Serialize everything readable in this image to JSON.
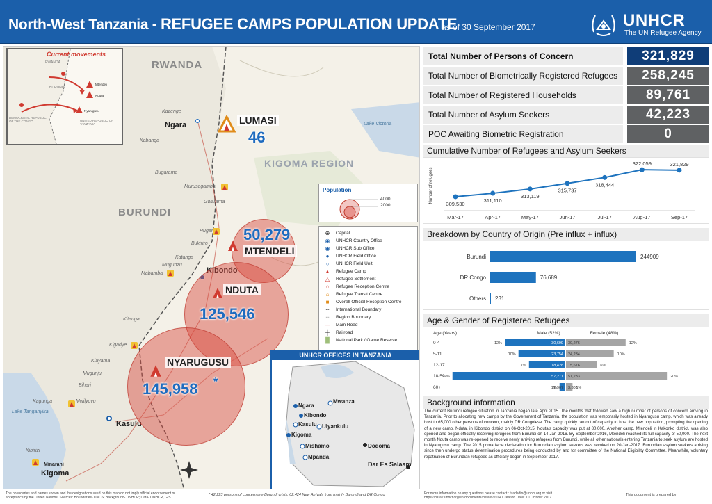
{
  "header": {
    "title_prefix": "North-West Tanzania - ",
    "title_caps": "REFUGEE  CAMPS POPULATION UPDATE",
    "as_of": "as of 30 September 2017",
    "org_name": "UNHCR",
    "org_tagline": "The UN Refugee Agency",
    "brand_color": "#1b5faa"
  },
  "stats": [
    {
      "label": "Total Number of Persons of Concern",
      "value": "321,829"
    },
    {
      "label": "Total Number of Biometrically Registered Refugees",
      "value": "258,245"
    },
    {
      "label": "Total Number of Registered Households",
      "value": "89,761"
    },
    {
      "label": "Total Number of Asylum Seekers",
      "value": "42,223"
    },
    {
      "label": "POC Awaiting Biometric Registration",
      "value": "0"
    }
  ],
  "map": {
    "countries": [
      "RWANDA",
      "BURUNDI"
    ],
    "region": "KIGOMA REGION",
    "lake": "Lake Victoria",
    "towns": {
      "ngara": "Ngara",
      "kibondo": "Kibondo",
      "kasulu": "Kasulu",
      "kigoma": "Kigoma"
    },
    "border_points": [
      "Kazenge",
      "Kabanga",
      "Bugarama",
      "Murusagamba",
      "Gwarama",
      "Rugenge",
      "Bukiriro",
      "Katanga",
      "Mugunzu",
      "Mabamba",
      "Kitanga",
      "Kigadye",
      "Kiayama",
      "Mugunju",
      "Bihari",
      "Kagunga",
      "Mwilyovu"
    ],
    "lake_tanganyika": "Lake Tanganyika",
    "camps": [
      {
        "name": "LUMASI",
        "value": "46"
      },
      {
        "name": "MTENDELI",
        "value": "50,279"
      },
      {
        "name": "NDUTA",
        "value": "125,546"
      },
      {
        "name": "NYARUGUSU",
        "value": "145,958",
        "mark": "*"
      }
    ],
    "minarani": "Minarani",
    "kigoma_port": "Kibirizi",
    "movements_inset": {
      "title": "Current movements",
      "labels": [
        "RWANDA",
        "BURUNDI",
        "DEMOCRATIC REPUBLIC OF THE CONGO",
        "UNITED REPUBLIC OF TANZANIA",
        "Mtendeli",
        "Nduta",
        "Nyarugusu"
      ]
    },
    "population_legend": {
      "title": "Population",
      "values": [
        "4000",
        "2000"
      ]
    },
    "legend_items": [
      "Capital",
      "UNHCR Country Office",
      "UNHCR Sub Office",
      "UNHCR Field Office",
      "UNHCR Field Unit",
      "Refugee Camp",
      "Refugee Settlement",
      "Refugee Reception Centre",
      "Refugee Transit Centre",
      "Overall Official Reception Centre",
      "International Boundary",
      "Region Boundary",
      "Main Road",
      "Railroad",
      "National Park / Game Reserve"
    ],
    "offices_inset": {
      "title": "UNHCR OFFICES IN TANZANIA",
      "cities": [
        "Ngara",
        "Kibondo",
        "Kasulu",
        "Kigoma",
        "Mwanza",
        "Ulyankulu",
        "Mishamo",
        "Mpanda",
        "Dodoma",
        "Dar Es Salaam"
      ]
    }
  },
  "cumulative": {
    "title": "Cumulative Number of Refugees and Asylum Seekers",
    "ylabel": "Number of refugees"
  },
  "origin": {
    "title": "Breakdown by Country of Origin (Pre influx + influx)"
  },
  "agegender": {
    "title": "Age & Gender of Registered Refugees",
    "col_age": "Age (Years)",
    "col_male": "Male (52%)",
    "col_female": "Female (48%)"
  },
  "chart_data": [
    {
      "type": "line",
      "title": "Cumulative Number of Refugees and Asylum Seekers",
      "ylabel": "Number of refugees",
      "x": [
        "Mar-17",
        "Apr-17",
        "May-17",
        "Jun-17",
        "Jul-17",
        "Aug-17",
        "Sep-17"
      ],
      "values": [
        309530,
        311110,
        313119,
        315737,
        318444,
        322059,
        321829
      ],
      "labels": [
        "309,530",
        "311,110",
        "313,119",
        "315,737",
        "318,444",
        "322,059",
        "321,829"
      ],
      "ylim": [
        305000,
        325000
      ],
      "color": "#1e73be"
    },
    {
      "type": "bar",
      "title": "Breakdown by Country of Origin (Pre influx + influx)",
      "categories": [
        "Burundi",
        "DR Congo",
        "Others"
      ],
      "values": [
        244909,
        76689,
        231
      ],
      "labels": [
        "244909",
        "76,689",
        "231"
      ],
      "color": "#1e73be"
    },
    {
      "type": "bar",
      "title": "Age & Gender of Registered Refugees",
      "categories": [
        "0-4",
        "5-11",
        "12-17",
        "18-59",
        "60+"
      ],
      "series": [
        {
          "name": "Male (52%)",
          "values": [
            30699,
            23754,
            18428,
            57271,
            2907
          ],
          "labels": [
            "30,699",
            "23,754",
            "18,428",
            "57,271",
            "2,907"
          ],
          "pct": [
            "12%",
            "10%",
            "7%",
            "22%",
            "1%"
          ],
          "color": "#1e73be"
        },
        {
          "name": "Female (48%)",
          "values": [
            30276,
            24234,
            15676,
            51233,
            3306
          ],
          "labels": [
            "30,276",
            "24,234",
            "15,676",
            "51,233",
            "3,306"
          ],
          "pct": [
            "12%",
            "10%",
            "6%",
            "20%",
            "1%"
          ],
          "color": "#a5a5a5"
        }
      ]
    }
  ],
  "background": {
    "title": "Background information",
    "text": "The current Burundi refugee situation in Tanzania began late April 2015. The months that followed saw a high number of persons of concern arriving in Tanzania. Prior to allocating new camps by the Government of Tanzania, the population was temporarily hosted in Nyarugusu camp, which was already host to 65,000 other persons of concern, mainly DR Congolese. The camp quickly ran out of capacity to host the new population, prompting the opening of a new camp, Nduta, in Kibondo district on 06-Oct-2015. Nduta's capacity was put at 80,000. Another camp, Mtendeli in Kakonko district, was also opened and began officially receiving refugees from Burundi on 14-Jan-2016. By September 2016, Mtendeli reached its full capacity of 50,000. The next month Nduta camp was re-opened to receive newly arriving refugees from Burundi, while all other nationals entering Tanzania to seek asylum are hosted in Nyarugusu camp. The 2015 prima facie declaration for Burundian asylum seekers was revoked on 20-Jan-2017. Burundian asylum seekers arriving since then undergo status determination procedures being conducted by and for committee of the National Eligibility Committee. Meanwhile, voluntary repatriation of Burundian refugees as officially began in September 2017."
  },
  "footer": {
    "disclaimer": "The boundaries and names shown and the designations used on this map do not imply official endorsement or acceptance by the United Nations. Sources: Boundaries- UNCS; Background- UNHCR; Data- UNHCR, GIS",
    "note": "* 42,223 persons of concern pre-Burundi crisis,  62,424 New Arrivals from mainly Burundi and DR Congo",
    "contact": "For more information on any questions please contact : tzadadin@unhcr.org or visit https://data2.unhcr.org/en/documents/details/2014 Creation Date: 10 October 2017",
    "prepared": "This document is prepared by"
  }
}
